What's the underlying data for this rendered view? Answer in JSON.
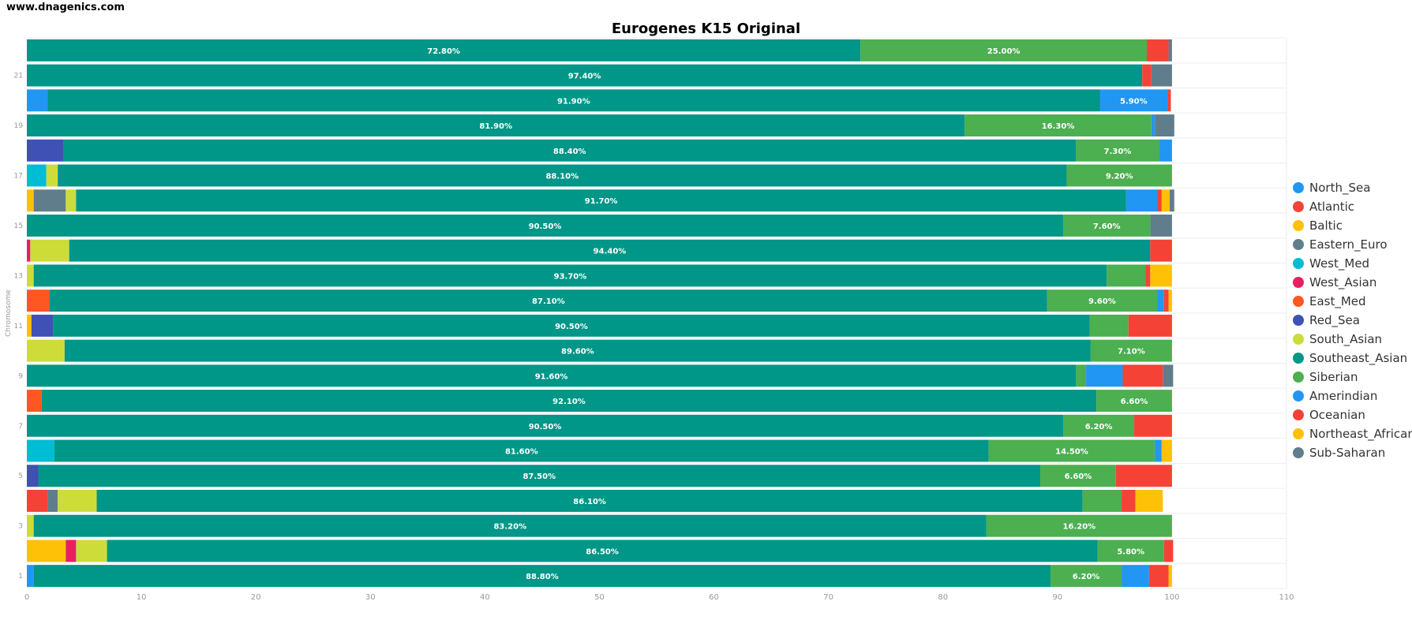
{
  "header": {
    "site": "www.dnagenics.com"
  },
  "chart_data": {
    "type": "bar",
    "orientation": "horizontal",
    "stacked": true,
    "title": "Eurogenes K15 Original",
    "xlabel": "",
    "ylabel": "Chromosome",
    "xlim": [
      0,
      110
    ],
    "x_ticks": [
      0,
      10,
      20,
      30,
      40,
      50,
      60,
      70,
      80,
      90,
      100,
      110
    ],
    "categories": [
      "1",
      "2",
      "3",
      "4",
      "5",
      "6",
      "7",
      "8",
      "9",
      "10",
      "11",
      "12",
      "13",
      "14",
      "15",
      "16",
      "17",
      "18",
      "19",
      "20",
      "21",
      "22"
    ],
    "y_tick_labels": [
      "1",
      "",
      "3",
      "",
      "5",
      "",
      "7",
      "",
      "9",
      "",
      "11",
      "",
      "13",
      "",
      "15",
      "",
      "17",
      "",
      "19",
      "",
      "21",
      ""
    ],
    "colors": {
      "North_Sea": "#2196f3",
      "Atlantic": "#f44336",
      "Baltic": "#ffc107",
      "Eastern_Euro": "#607d8b",
      "West_Med": "#00bcd4",
      "West_Asian": "#e91e63",
      "East_Med": "#ff5722",
      "Red_Sea": "#3f51b5",
      "South_Asian": "#cddc39",
      "Southeast_Asian": "#009688",
      "Siberian": "#4caf50",
      "Amerindian": "#2196f3",
      "Oceanian": "#f44336",
      "Northeast_African": "#ffc107",
      "Sub-Saharan": "#607d8b"
    },
    "series": [
      {
        "name": "North_Sea",
        "values": [
          0.6,
          0,
          0,
          0,
          0,
          0,
          0,
          0,
          0,
          0,
          0,
          0,
          0,
          0,
          0,
          0,
          0,
          0,
          0,
          1.8,
          0,
          0
        ]
      },
      {
        "name": "Atlantic",
        "values": [
          0,
          0,
          0,
          1.8,
          0,
          0,
          0,
          0,
          0,
          0,
          0,
          0,
          0,
          0,
          0,
          0,
          0,
          0,
          0,
          0,
          0,
          0
        ]
      },
      {
        "name": "Baltic",
        "values": [
          0,
          3.4,
          0,
          0,
          0,
          0,
          0,
          0,
          0,
          0,
          0.4,
          0,
          0,
          0,
          0,
          0.6,
          0,
          0,
          0,
          0,
          0,
          0
        ]
      },
      {
        "name": "Eastern_Euro",
        "values": [
          0,
          0,
          0,
          0.9,
          0,
          0,
          0,
          0,
          0,
          0,
          0,
          0,
          0,
          0,
          0,
          2.8,
          0,
          0,
          0,
          0,
          0,
          0
        ]
      },
      {
        "name": "West_Med",
        "values": [
          0,
          0,
          0,
          0,
          0,
          2.4,
          0,
          0,
          0,
          0,
          0,
          0,
          0,
          0,
          0,
          0,
          1.7,
          0,
          0,
          0,
          0,
          0
        ]
      },
      {
        "name": "West_Asian",
        "values": [
          0,
          0.9,
          0,
          0,
          0,
          0,
          0,
          0,
          0,
          0,
          0,
          0,
          0,
          0.3,
          0,
          0,
          0,
          0,
          0,
          0,
          0,
          0
        ]
      },
      {
        "name": "East_Med",
        "values": [
          0,
          0,
          0,
          0,
          0,
          0,
          0,
          1.3,
          0,
          0,
          0,
          2.0,
          0,
          0,
          0,
          0,
          0,
          0,
          0,
          0,
          0,
          0
        ]
      },
      {
        "name": "Red_Sea",
        "values": [
          0,
          0,
          0,
          0,
          1.0,
          0,
          0,
          0,
          0,
          0,
          1.9,
          0,
          0,
          0,
          0,
          0,
          0,
          3.2,
          0,
          0,
          0,
          0
        ]
      },
      {
        "name": "South_Asian",
        "values": [
          0,
          2.7,
          0.6,
          3.4,
          0,
          0,
          0,
          0,
          0,
          3.3,
          0,
          0,
          0.6,
          3.4,
          0,
          0.9,
          1.0,
          0,
          0,
          0,
          0,
          0
        ]
      },
      {
        "name": "Southeast_Asian",
        "values": [
          88.8,
          86.5,
          83.2,
          86.1,
          87.5,
          81.6,
          90.5,
          92.1,
          91.6,
          89.6,
          90.5,
          87.1,
          93.7,
          94.4,
          90.5,
          91.7,
          88.1,
          88.4,
          81.9,
          91.9,
          97.4,
          72.8
        ]
      },
      {
        "name": "Siberian",
        "values": [
          6.2,
          5.8,
          16.2,
          3.4,
          6.6,
          14.5,
          6.2,
          6.6,
          0.9,
          7.1,
          3.4,
          9.6,
          3.4,
          0,
          7.6,
          0,
          9.2,
          7.3,
          16.3,
          0,
          0,
          25.0
        ]
      },
      {
        "name": "Amerindian",
        "values": [
          2.4,
          0,
          0,
          0,
          0,
          0.6,
          0,
          0,
          3.2,
          0,
          0,
          0.6,
          0,
          0,
          0,
          2.7,
          0,
          1.1,
          0.3,
          5.9,
          0,
          0
        ]
      },
      {
        "name": "Oceanian",
        "values": [
          1.7,
          0.8,
          0,
          1.2,
          4.9,
          0,
          3.3,
          0,
          3.5,
          0,
          3.8,
          0.4,
          0.4,
          1.9,
          0,
          0.4,
          0,
          0,
          0,
          0.3,
          0.8,
          1.9
        ]
      },
      {
        "name": "Northeast_African",
        "values": [
          0.3,
          0,
          0,
          2.4,
          0,
          0.9,
          0,
          0,
          0,
          0,
          0,
          0.3,
          1.9,
          0,
          0,
          0.7,
          0,
          0,
          0,
          0,
          0,
          0
        ]
      },
      {
        "name": "Sub-Saharan",
        "values": [
          0,
          0,
          0,
          0,
          0,
          0,
          0,
          0,
          0.9,
          0,
          0,
          0,
          0,
          0,
          1.9,
          0.4,
          0,
          0,
          1.7,
          0,
          1.8,
          0.3
        ]
      }
    ],
    "data_label_min": 5,
    "grid": true,
    "legend_position": "right"
  },
  "legend": {
    "items": [
      {
        "label": "North_Sea",
        "color": "#2196f3"
      },
      {
        "label": "Atlantic",
        "color": "#f44336"
      },
      {
        "label": "Baltic",
        "color": "#ffc107"
      },
      {
        "label": "Eastern_Euro",
        "color": "#607d8b"
      },
      {
        "label": "West_Med",
        "color": "#00bcd4"
      },
      {
        "label": "West_Asian",
        "color": "#e91e63"
      },
      {
        "label": "East_Med",
        "color": "#ff5722"
      },
      {
        "label": "Red_Sea",
        "color": "#3f51b5"
      },
      {
        "label": "South_Asian",
        "color": "#cddc39"
      },
      {
        "label": "Southeast_Asian",
        "color": "#009688"
      },
      {
        "label": "Siberian",
        "color": "#4caf50"
      },
      {
        "label": "Amerindian",
        "color": "#2196f3"
      },
      {
        "label": "Oceanian",
        "color": "#f44336"
      },
      {
        "label": "Northeast_African",
        "color": "#ffc107"
      },
      {
        "label": "Sub-Saharan",
        "color": "#607d8b"
      }
    ]
  }
}
